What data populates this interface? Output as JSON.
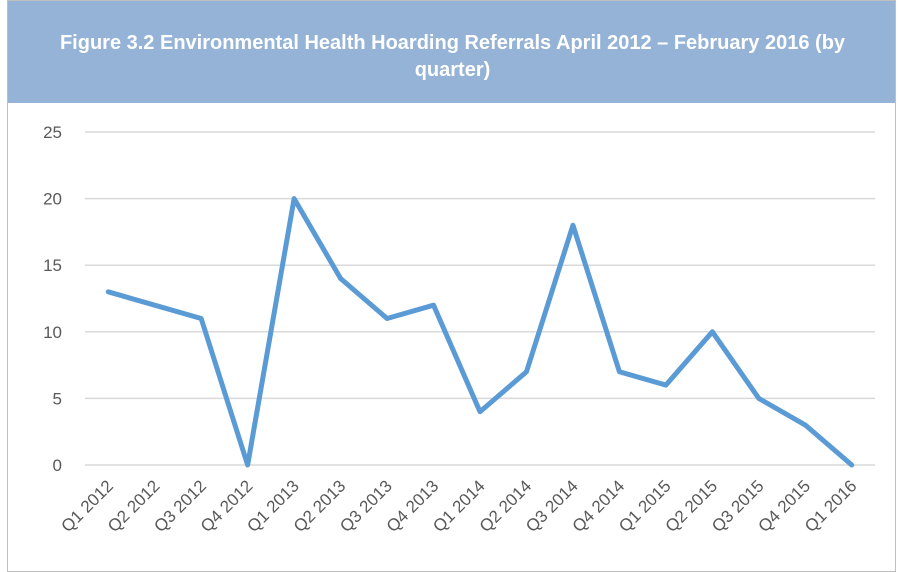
{
  "chart_data": {
    "type": "line",
    "title": "Figure 3.2 Environmental Health Hoarding Referrals April 2012 – February 2016 (by quarter)",
    "categories": [
      "Q1 2012",
      "Q2 2012",
      "Q3 2012",
      "Q4 2012",
      "Q1 2013",
      "Q2 2013",
      "Q3 2013",
      "Q4 2013",
      "Q1 2014",
      "Q2 2014",
      "Q3 2014",
      "Q4 2014",
      "Q1 2015",
      "Q2 2015",
      "Q3 2015",
      "Q4 2015",
      "Q1 2016"
    ],
    "values": [
      13,
      12,
      11,
      0,
      20,
      14,
      11,
      12,
      4,
      7,
      18,
      7,
      6,
      10,
      5,
      3,
      0
    ],
    "color": "#5b9bd5",
    "ylim": [
      0,
      25
    ],
    "yticks": [
      0,
      5,
      10,
      15,
      20,
      25
    ],
    "grid": true
  }
}
